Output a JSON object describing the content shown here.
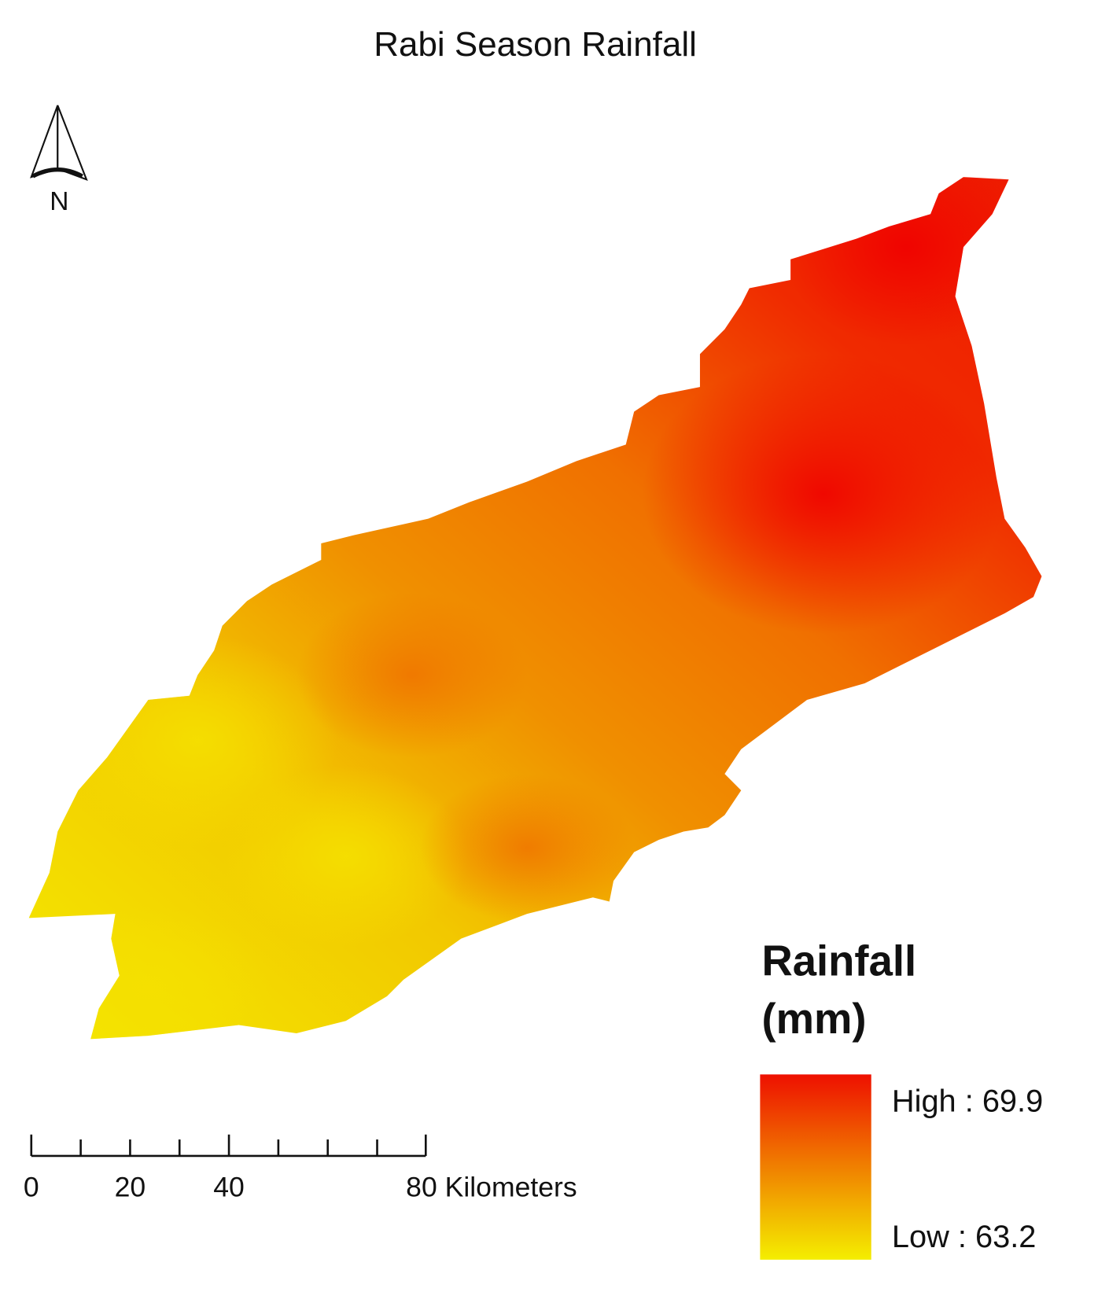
{
  "title": "Rabi Season Rainfall",
  "north_arrow": {
    "label": "N"
  },
  "legend": {
    "title_lines": [
      "Rainfall",
      "(mm)"
    ],
    "high_label": "High : 69.9",
    "low_label": "Low : 63.2"
  },
  "scale_bar": {
    "labels": [
      "0",
      "20",
      "40",
      "80 Kilometers"
    ]
  }
}
